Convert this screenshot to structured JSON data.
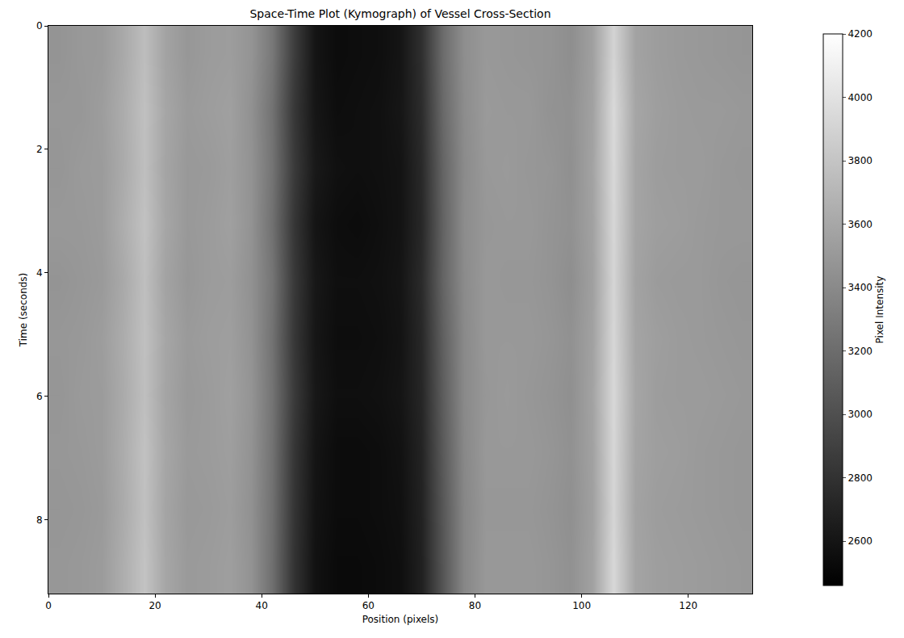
{
  "chart_data": {
    "type": "heatmap",
    "title": "Space-Time Plot (Kymograph) of Vessel Cross-Section",
    "x_label": "Position (pixels)",
    "y_label": "Time (seconds)",
    "x": [
      2,
      6,
      10,
      14,
      18,
      22,
      26,
      30,
      34,
      38,
      42,
      46,
      50,
      54,
      58,
      62,
      66,
      70,
      74,
      78,
      82,
      86,
      90,
      94,
      98,
      102,
      106,
      110,
      114,
      118,
      122,
      126,
      130
    ],
    "y": [
      0.46,
      1.38,
      2.3,
      3.22,
      4.14,
      5.06,
      5.98,
      6.9,
      7.82,
      8.74
    ],
    "cells": [
      [
        3470,
        3500,
        3510,
        3610,
        3750,
        3570,
        3490,
        3520,
        3530,
        3470,
        3280,
        2880,
        2600,
        2540,
        2550,
        2560,
        2600,
        2780,
        3200,
        3430,
        3500,
        3490,
        3480,
        3470,
        3430,
        3550,
        3900,
        3570,
        3530,
        3510,
        3500,
        3490,
        3480
      ],
      [
        3490,
        3490,
        3530,
        3630,
        3770,
        3590,
        3510,
        3530,
        3550,
        3450,
        3240,
        2840,
        2610,
        2550,
        2560,
        2570,
        2610,
        2760,
        3180,
        3420,
        3510,
        3500,
        3500,
        3460,
        3450,
        3560,
        3940,
        3590,
        3540,
        3520,
        3510,
        3510,
        3500
      ],
      [
        3480,
        3510,
        3520,
        3620,
        3760,
        3580,
        3500,
        3510,
        3540,
        3460,
        3250,
        2860,
        2630,
        2570,
        2560,
        2570,
        2590,
        2740,
        3150,
        3410,
        3500,
        3510,
        3490,
        3480,
        3440,
        3570,
        3930,
        3580,
        3530,
        3520,
        3520,
        3500,
        3490
      ],
      [
        3500,
        3500,
        3520,
        3640,
        3780,
        3590,
        3500,
        3520,
        3550,
        3460,
        3230,
        2830,
        2600,
        2550,
        2540,
        2560,
        2590,
        2730,
        3140,
        3420,
        3490,
        3500,
        3500,
        3470,
        3450,
        3560,
        3920,
        3580,
        3540,
        3530,
        3510,
        3500,
        3500
      ],
      [
        3470,
        3490,
        3510,
        3610,
        3760,
        3570,
        3490,
        3520,
        3530,
        3450,
        3260,
        2850,
        2620,
        2560,
        2560,
        2570,
        2600,
        2750,
        3150,
        3410,
        3500,
        3490,
        3490,
        3470,
        3430,
        3550,
        3910,
        3570,
        3520,
        3510,
        3510,
        3490,
        3480
      ],
      [
        3490,
        3500,
        3530,
        3630,
        3770,
        3590,
        3510,
        3530,
        3540,
        3460,
        3240,
        2840,
        2610,
        2550,
        2550,
        2560,
        2590,
        2730,
        3120,
        3400,
        3500,
        3500,
        3500,
        3480,
        3450,
        3560,
        3920,
        3580,
        3540,
        3520,
        3510,
        3500,
        3490
      ],
      [
        3480,
        3510,
        3520,
        3620,
        3760,
        3580,
        3500,
        3520,
        3550,
        3470,
        3250,
        2860,
        2620,
        2560,
        2560,
        2570,
        2600,
        2720,
        3100,
        3400,
        3490,
        3510,
        3490,
        3470,
        3440,
        3570,
        3930,
        3590,
        3530,
        3520,
        3520,
        3510,
        3500
      ],
      [
        3490,
        3500,
        3520,
        3630,
        3780,
        3590,
        3510,
        3520,
        3540,
        3460,
        3240,
        2830,
        2600,
        2540,
        2540,
        2550,
        2580,
        2700,
        3080,
        3390,
        3500,
        3500,
        3500,
        3480,
        3450,
        3560,
        3920,
        3580,
        3540,
        3530,
        3510,
        3500,
        3490
      ],
      [
        3480,
        3490,
        3510,
        3620,
        3770,
        3580,
        3500,
        3510,
        3530,
        3450,
        3230,
        2820,
        2590,
        2540,
        2540,
        2550,
        2570,
        2690,
        3060,
        3380,
        3490,
        3490,
        3490,
        3470,
        3440,
        3550,
        3910,
        3570,
        3530,
        3520,
        3510,
        3500,
        3490
      ],
      [
        3490,
        3500,
        3520,
        3640,
        3790,
        3590,
        3510,
        3520,
        3540,
        3460,
        3220,
        2810,
        2580,
        2530,
        2530,
        2540,
        2560,
        2680,
        3050,
        3380,
        3500,
        3500,
        3500,
        3480,
        3450,
        3560,
        3930,
        3580,
        3540,
        3530,
        3520,
        3510,
        3500
      ]
    ],
    "xlim": [
      0,
      132
    ],
    "xticks": [
      0,
      20,
      40,
      60,
      80,
      100,
      120
    ],
    "ylim": [
      0,
      9.2
    ],
    "yticks": [
      0,
      2,
      4,
      6,
      8
    ],
    "colorbar": {
      "title": "Pixel Intensity",
      "range": [
        2460,
        4200
      ],
      "ticks": [
        2600,
        2800,
        3000,
        3200,
        3400,
        3600,
        3800,
        4000,
        4200
      ]
    },
    "grid": false
  }
}
